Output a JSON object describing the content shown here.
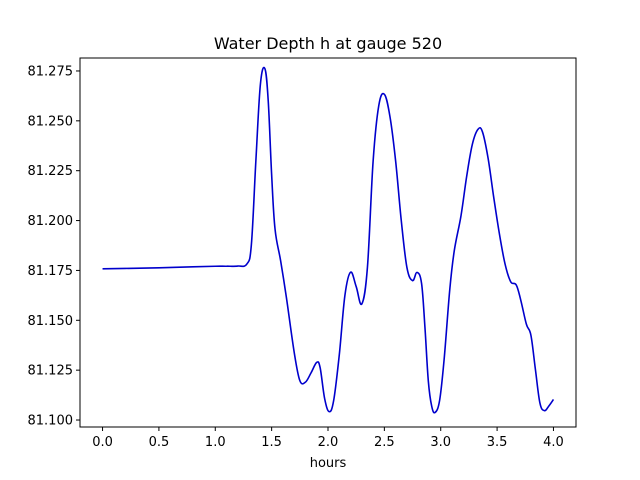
{
  "chart_data": {
    "type": "line",
    "title": "Water Depth h at gauge 520",
    "xlabel": "hours",
    "ylabel": "",
    "xlim": [
      -0.2,
      4.2
    ],
    "ylim": [
      81.0965,
      81.2815
    ],
    "xticks": [
      0.0,
      0.5,
      1.0,
      1.5,
      2.0,
      2.5,
      3.0,
      3.5,
      4.0
    ],
    "xtick_labels": [
      "0.0",
      "0.5",
      "1.0",
      "1.5",
      "2.0",
      "2.5",
      "3.0",
      "3.5",
      "4.0"
    ],
    "yticks": [
      81.1,
      81.125,
      81.15,
      81.175,
      81.2,
      81.225,
      81.25,
      81.275
    ],
    "ytick_labels": [
      "81.100",
      "81.125",
      "81.150",
      "81.175",
      "81.200",
      "81.225",
      "81.250",
      "81.275"
    ],
    "grid": false,
    "series": [
      {
        "color": "#0000cc",
        "x": [
          0.0,
          0.2,
          0.5,
          0.8,
          1.0,
          1.1,
          1.2,
          1.28,
          1.32,
          1.36,
          1.4,
          1.44,
          1.47,
          1.5,
          1.53,
          1.58,
          1.63,
          1.7,
          1.75,
          1.8,
          1.85,
          1.9,
          1.93,
          1.97,
          2.01,
          2.05,
          2.1,
          2.15,
          2.2,
          2.25,
          2.3,
          2.35,
          2.4,
          2.45,
          2.5,
          2.55,
          2.6,
          2.65,
          2.7,
          2.75,
          2.79,
          2.83,
          2.86,
          2.89,
          2.92,
          2.95,
          2.99,
          3.03,
          3.08,
          3.12,
          3.18,
          3.23,
          3.28,
          3.33,
          3.37,
          3.42,
          3.47,
          3.52,
          3.57,
          3.62,
          3.67,
          3.71,
          3.76,
          3.8,
          3.84,
          3.88,
          3.92,
          3.96,
          4.0
        ],
        "y": [
          81.1758,
          81.176,
          81.1763,
          81.1768,
          81.1771,
          81.1771,
          81.1772,
          81.1782,
          81.1878,
          81.2298,
          81.2681,
          81.2762,
          81.2598,
          81.223,
          81.1958,
          81.1798,
          81.1618,
          81.134,
          81.1198,
          81.119,
          81.1237,
          81.1289,
          81.1263,
          81.1108,
          81.1042,
          81.1097,
          81.1326,
          81.1625,
          81.1741,
          81.1669,
          81.1582,
          81.1767,
          81.2296,
          81.2575,
          81.2633,
          81.252,
          81.2298,
          81.2,
          81.1765,
          81.1699,
          81.174,
          81.1685,
          81.1464,
          81.1195,
          81.1069,
          81.1038,
          81.1098,
          81.1303,
          81.1653,
          81.1848,
          81.2025,
          81.2221,
          81.2381,
          81.2457,
          81.2445,
          81.2313,
          81.2117,
          81.1935,
          81.1784,
          81.1694,
          81.1677,
          81.1601,
          81.148,
          81.1425,
          81.1253,
          81.1085,
          81.1047,
          81.1071,
          81.1103
        ]
      }
    ]
  }
}
